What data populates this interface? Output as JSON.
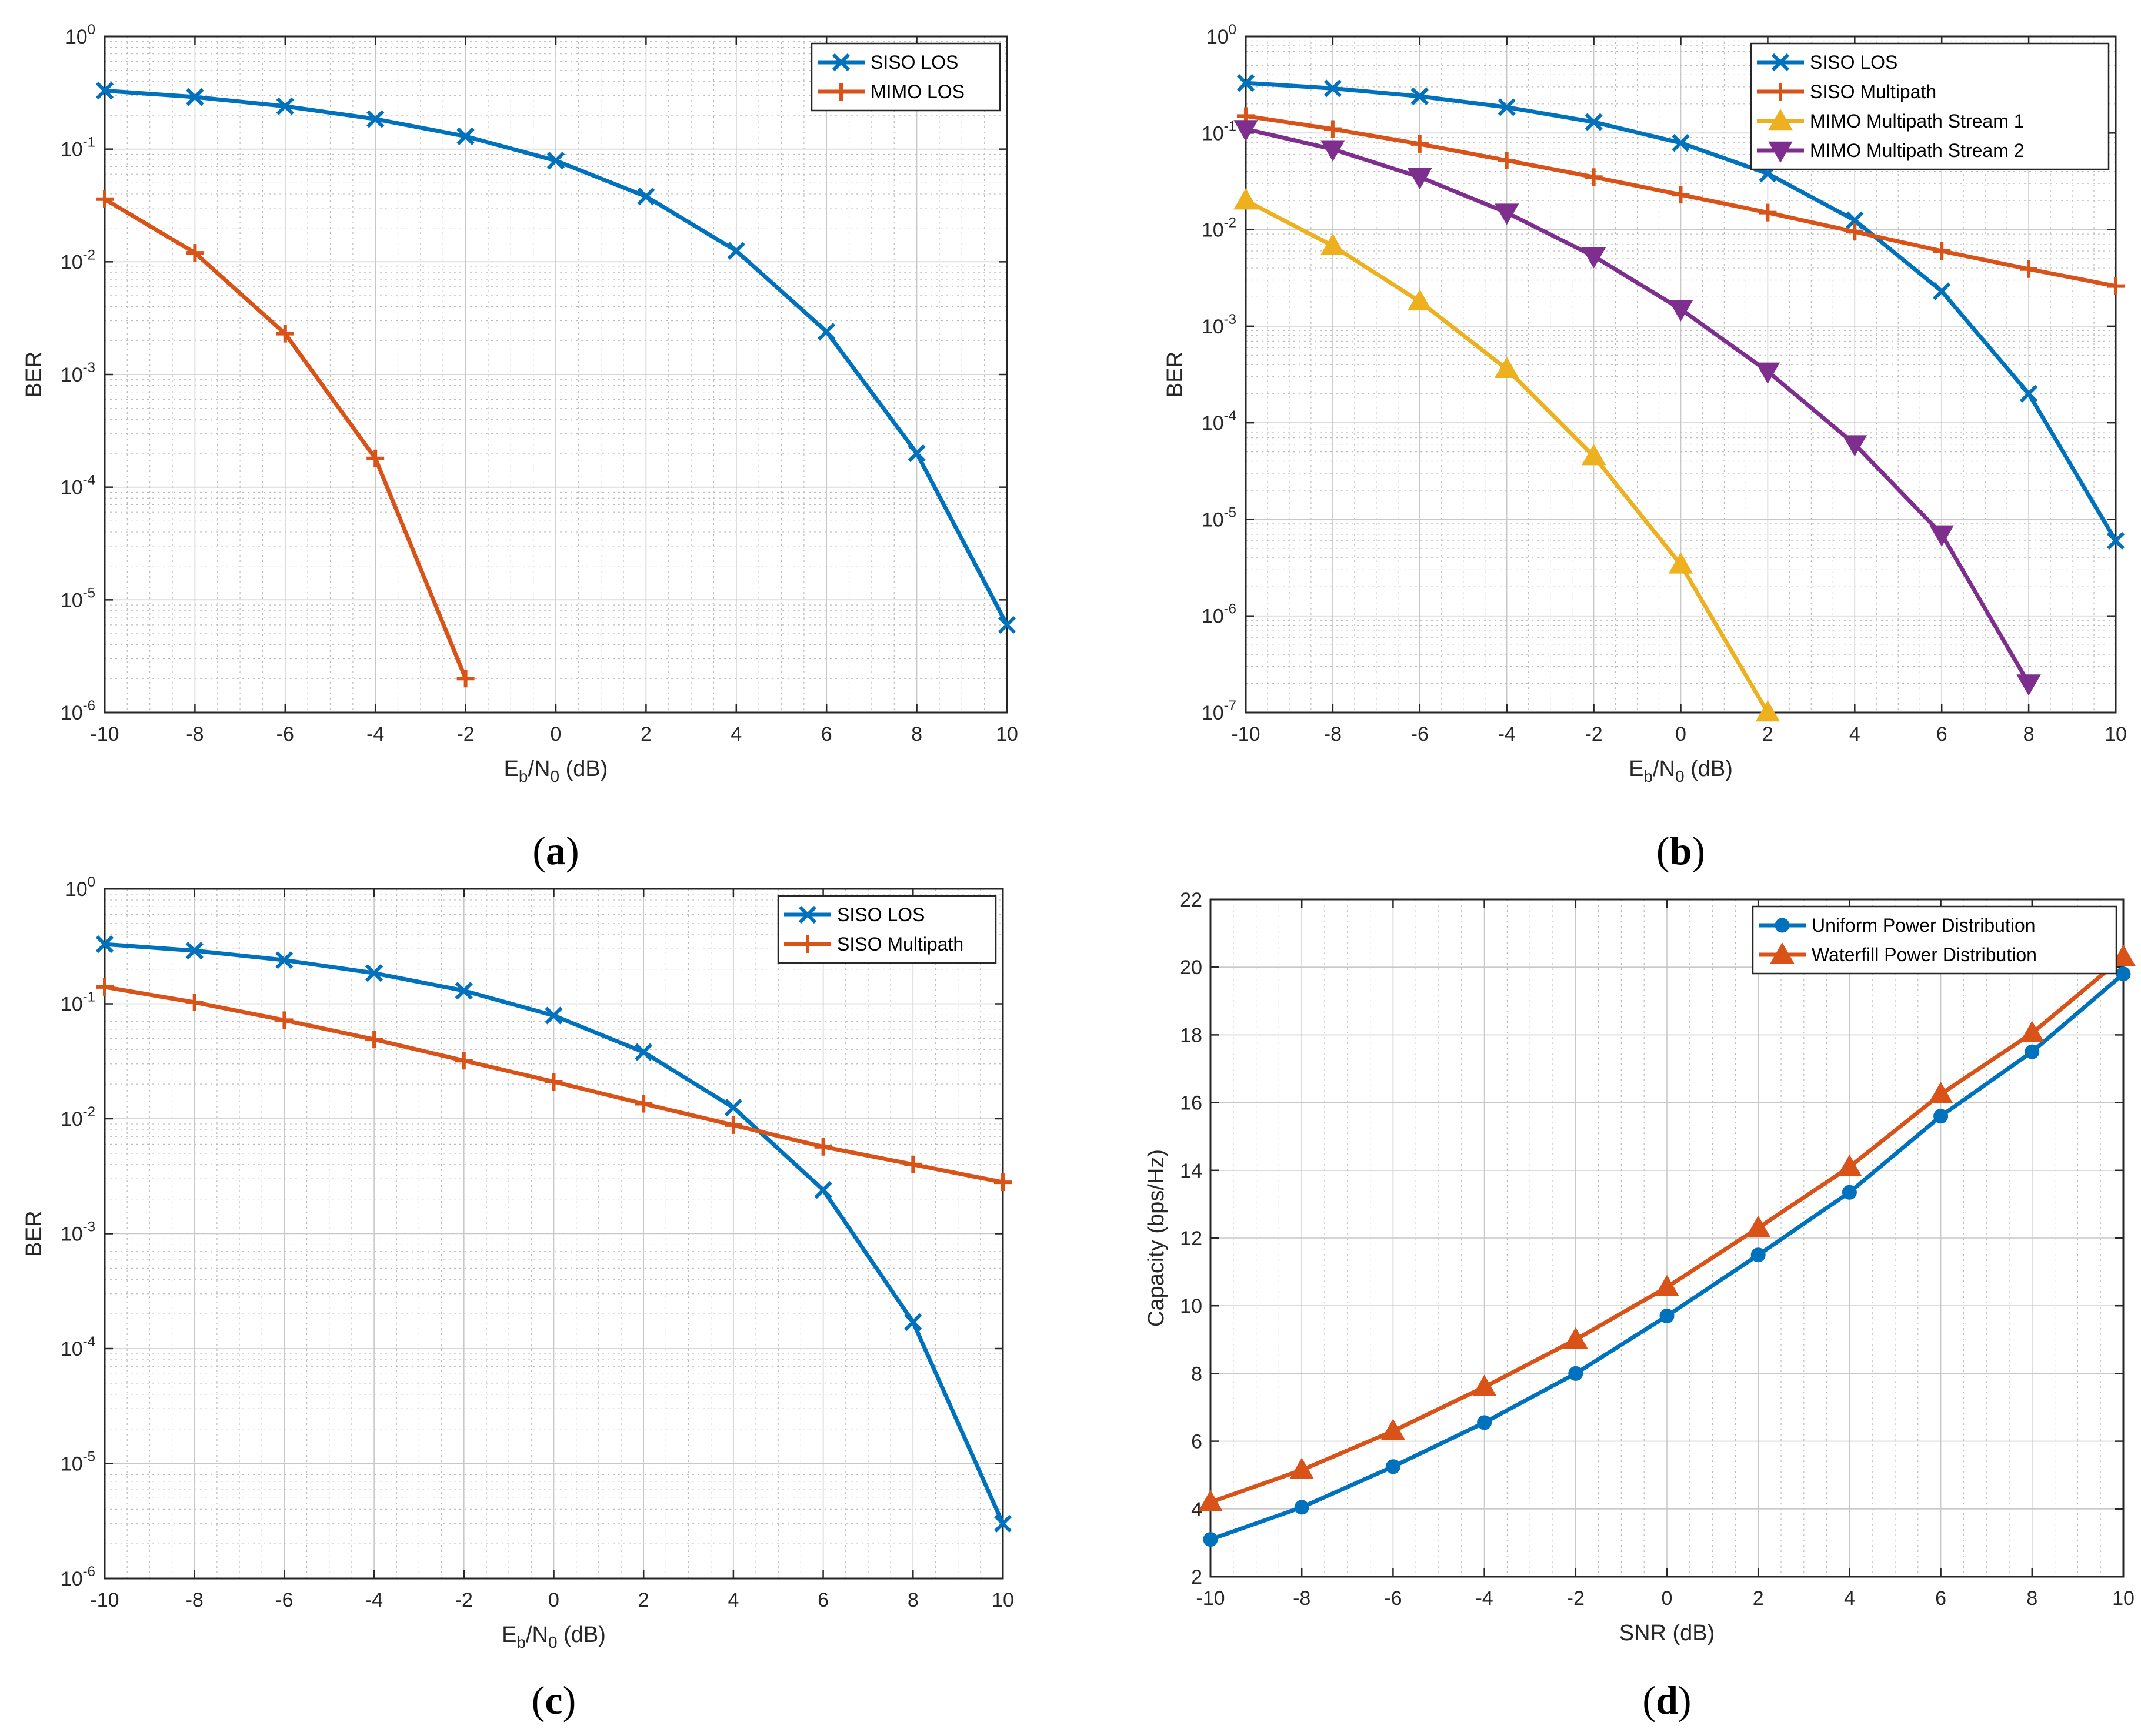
{
  "chart_data": [
    {
      "type": "line",
      "panel": "a",
      "yscale": "log",
      "x": [
        -10,
        -8,
        -6,
        -4,
        -2,
        0,
        2,
        4,
        6,
        8,
        10
      ],
      "xlim": [
        -10,
        10
      ],
      "ylim_exp": [
        -6,
        0
      ],
      "xticks": [
        "-10",
        "-8",
        "-6",
        "-4",
        "-2",
        "0",
        "2",
        "4",
        "6",
        "8",
        "10"
      ],
      "xlabel": {
        "main": "E",
        "sub1": "b",
        "slash": "/N",
        "sub2": "0",
        "unit": " (dB)"
      },
      "ylabel": "BER",
      "legend_position": "top-right",
      "series": [
        {
          "name": "SISO LOS",
          "color": "#0072BD",
          "marker": "x",
          "values": [
            0.33,
            0.29,
            0.24,
            0.185,
            0.13,
            0.079,
            0.038,
            0.0125,
            0.0024,
            0.0002,
            6e-06
          ]
        },
        {
          "name": "MIMO LOS",
          "color": "#D95319",
          "marker": "plus",
          "values": [
            0.036,
            0.012,
            0.0023,
            0.00018,
            2e-06,
            null,
            null,
            null,
            null,
            null,
            null
          ]
        }
      ]
    },
    {
      "type": "line",
      "panel": "b",
      "yscale": "log",
      "x": [
        -10,
        -8,
        -6,
        -4,
        -2,
        0,
        2,
        4,
        6,
        8,
        10
      ],
      "xlim": [
        -10,
        10
      ],
      "ylim_exp": [
        -7,
        0
      ],
      "xticks": [
        "-10",
        "-8",
        "-6",
        "-4",
        "-2",
        "0",
        "2",
        "4",
        "6",
        "8",
        "10"
      ],
      "xlabel": {
        "main": "E",
        "sub1": "b",
        "slash": "/N",
        "sub2": "0",
        "unit": " (dB)"
      },
      "ylabel": "BER",
      "legend_position": "top-right",
      "series": [
        {
          "name": "SISO LOS",
          "color": "#0072BD",
          "marker": "x",
          "values": [
            0.33,
            0.29,
            0.24,
            0.185,
            0.13,
            0.079,
            0.038,
            0.0125,
            0.0023,
            0.0002,
            6e-06
          ]
        },
        {
          "name": "SISO Multipath",
          "color": "#D95319",
          "marker": "plus",
          "values": [
            0.15,
            0.11,
            0.077,
            0.052,
            0.035,
            0.023,
            0.015,
            0.0095,
            0.006,
            0.0039,
            0.0026
          ]
        },
        {
          "name": "MIMO Multipath Stream 1",
          "color": "#EDB120",
          "marker": "triangle-up",
          "values": [
            0.02,
            0.0068,
            0.0018,
            0.00036,
            4.5e-05,
            3.4e-06,
            1e-07,
            null,
            null,
            null,
            null
          ]
        },
        {
          "name": "MIMO Multipath Stream 2",
          "color": "#7E2F8E",
          "marker": "triangle-down",
          "values": [
            0.11,
            0.068,
            0.035,
            0.015,
            0.0053,
            0.0015,
            0.00034,
            6e-05,
            7e-06,
            2e-07,
            null
          ]
        }
      ]
    },
    {
      "type": "line",
      "panel": "c",
      "yscale": "log",
      "x": [
        -10,
        -8,
        -6,
        -4,
        -2,
        0,
        2,
        4,
        6,
        8,
        10
      ],
      "xlim": [
        -10,
        10
      ],
      "ylim_exp": [
        -6,
        0
      ],
      "xticks": [
        "-10",
        "-8",
        "-6",
        "-4",
        "-2",
        "0",
        "2",
        "4",
        "6",
        "8",
        "10"
      ],
      "xlabel": {
        "main": "E",
        "sub1": "b",
        "slash": "/N",
        "sub2": "0",
        "unit": " (dB)"
      },
      "ylabel": "BER",
      "legend_position": "top-right",
      "series": [
        {
          "name": "SISO LOS",
          "color": "#0072BD",
          "marker": "x",
          "values": [
            0.33,
            0.29,
            0.24,
            0.185,
            0.13,
            0.079,
            0.038,
            0.0125,
            0.0024,
            0.00017,
            3e-06
          ]
        },
        {
          "name": "SISO Multipath",
          "color": "#D95319",
          "marker": "plus",
          "values": [
            0.14,
            0.103,
            0.072,
            0.049,
            0.032,
            0.021,
            0.0135,
            0.0088,
            0.0057,
            0.004,
            0.0028
          ]
        }
      ]
    },
    {
      "type": "line",
      "panel": "d",
      "yscale": "linear",
      "x": [
        -10,
        -8,
        -6,
        -4,
        -2,
        0,
        2,
        4,
        6,
        8,
        10
      ],
      "xlim": [
        -10,
        10
      ],
      "ylim": [
        2,
        22
      ],
      "xticks": [
        "-10",
        "-8",
        "-6",
        "-4",
        "-2",
        "0",
        "2",
        "4",
        "6",
        "8",
        "10"
      ],
      "yticks": [
        "2",
        "4",
        "6",
        "8",
        "10",
        "12",
        "14",
        "16",
        "18",
        "20",
        "22"
      ],
      "xlabel": {
        "main": "SNR (dB)"
      },
      "ylabel": "Capacity (bps/Hz)",
      "legend_position": "top-right",
      "series": [
        {
          "name": "Uniform Power Distribution",
          "color": "#0072BD",
          "marker": "circle",
          "values": [
            3.1,
            4.05,
            5.25,
            6.55,
            8.0,
            9.7,
            11.5,
            13.35,
            15.6,
            17.5,
            19.8
          ]
        },
        {
          "name": "Waterfill Power Distribution",
          "color": "#D95319",
          "marker": "triangle-up",
          "values": [
            4.2,
            5.15,
            6.3,
            7.6,
            9.0,
            10.55,
            12.3,
            14.1,
            16.25,
            18.05,
            20.3
          ]
        }
      ]
    }
  ],
  "panel_labels": [
    {
      "open": "(",
      "letter": "a",
      "close": ")"
    },
    {
      "open": "(",
      "letter": "b",
      "close": ")"
    },
    {
      "open": "(",
      "letter": "c",
      "close": ")"
    },
    {
      "open": "(",
      "letter": "d",
      "close": ")"
    }
  ]
}
